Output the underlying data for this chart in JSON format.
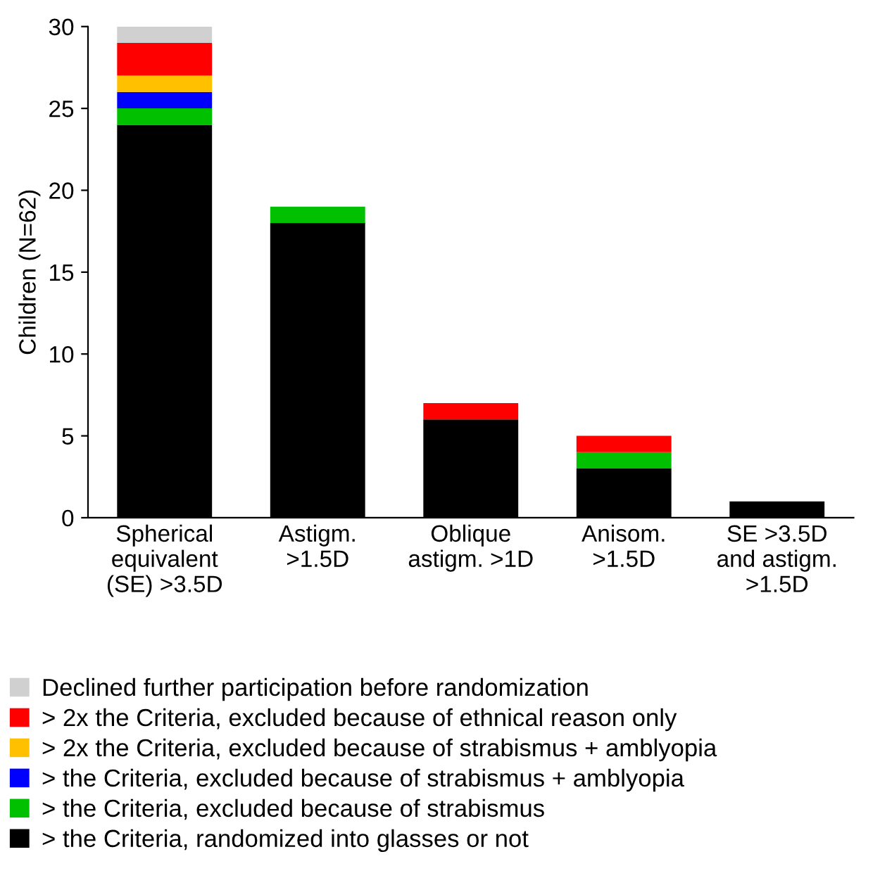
{
  "chart_data": {
    "type": "bar",
    "stacked": true,
    "ylabel": "Children (N=62)",
    "categories": [
      "Spherical\nequivalent\n(SE) >3.5D",
      "Astigm.\n>1.5D",
      "Oblique\nastigm. >1D",
      "Anisom.\n>1.5D",
      "SE >3.5D\nand astigm.\n>1.5D"
    ],
    "series": [
      {
        "name": "> the Criteria, randomized into glasses or not",
        "color": "#000000",
        "values": [
          24,
          18,
          6,
          3,
          1
        ]
      },
      {
        "name": "> the Criteria, excluded because of strabismus",
        "color": "#00c000",
        "values": [
          1,
          1,
          0,
          1,
          0
        ]
      },
      {
        "name": "> the Criteria, excluded because of strabismus + amblyopia",
        "color": "#0000ff",
        "values": [
          1,
          0,
          0,
          0,
          0
        ]
      },
      {
        "name": "> 2x the Criteria, excluded because of strabismus + amblyopia",
        "color": "#ffc000",
        "values": [
          1,
          0,
          0,
          0,
          0
        ]
      },
      {
        "name": "> 2x the Criteria, excluded because of ethnical reason only",
        "color": "#ff0000",
        "values": [
          2,
          0,
          1,
          1,
          0
        ]
      },
      {
        "name": "Declined further participation before randomization",
        "color": "#d0d0d0",
        "values": [
          1,
          0,
          0,
          0,
          0
        ]
      }
    ],
    "ylim": [
      0,
      30
    ],
    "yticks": [
      0,
      5,
      10,
      15,
      20,
      25,
      30
    ],
    "grid": false,
    "legend": "bottom"
  }
}
